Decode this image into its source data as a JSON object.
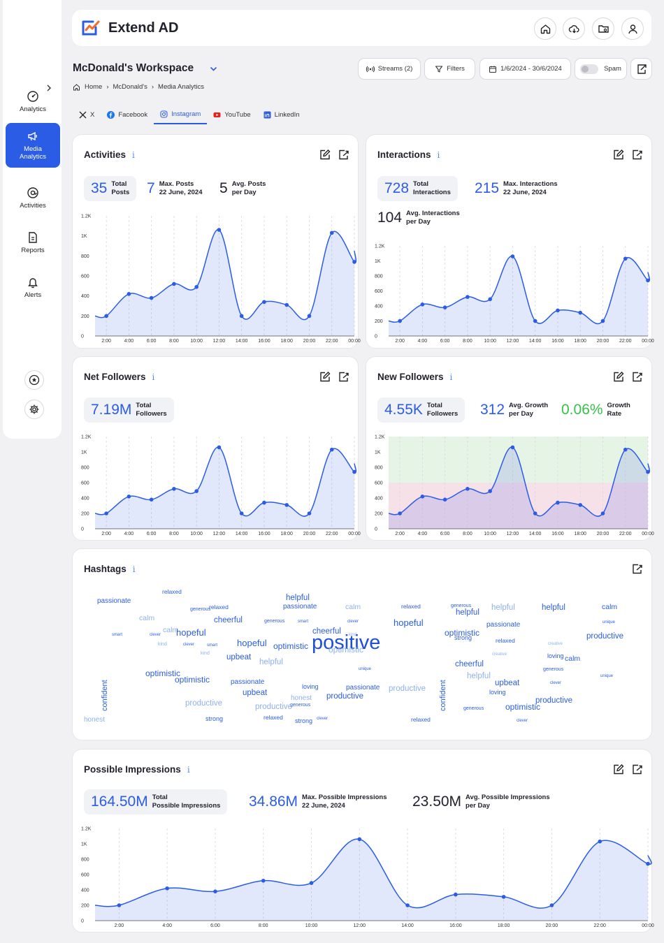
{
  "app": {
    "name": "Extend AD"
  },
  "sidebar": {
    "items": [
      {
        "label": "Analytics",
        "icon": "gauge-icon"
      },
      {
        "label": "Media Analytics",
        "icon": "megaphone-icon"
      },
      {
        "label": "Activities",
        "icon": "at-sign-icon"
      },
      {
        "label": "Reports",
        "icon": "document-icon"
      },
      {
        "label": "Alerts",
        "icon": "bell-icon"
      }
    ]
  },
  "workspace": {
    "title": "McDonald's Workspace"
  },
  "toolbar": {
    "streams": "Streams (2)",
    "filters": "Filters",
    "date_range": "1/6/2024 - 30/6/2024",
    "spam": "Spam"
  },
  "breadcrumb": [
    "Home",
    "McDonald's",
    "Media Analytics"
  ],
  "tabs": [
    {
      "label": "X"
    },
    {
      "label": "Facebook"
    },
    {
      "label": "Instagram",
      "active": true
    },
    {
      "label": "YouTube"
    },
    {
      "label": "LinkedIn"
    }
  ],
  "info_glyph": "i",
  "cards": {
    "activities": {
      "title": "Activities",
      "stats": [
        {
          "value": "35",
          "label1": "Total",
          "label2": "Posts"
        },
        {
          "value": "7",
          "label1": "Max. Posts",
          "label2": "22 June, 2024"
        },
        {
          "value": "5",
          "label1": "Avg. Posts",
          "label2": "per Day"
        }
      ]
    },
    "interactions": {
      "title": "Interactions",
      "stats": [
        {
          "value": "728",
          "label1": "Total",
          "label2": "Interactions"
        },
        {
          "value": "215",
          "label1": "Max. Interactions",
          "label2": "22 June, 2024"
        },
        {
          "value": "104",
          "label1": "Avg. Interactions",
          "label2": "per Day"
        }
      ]
    },
    "net_followers": {
      "title": "Net Followers",
      "stats": [
        {
          "value": "7.19M",
          "label1": "Total",
          "label2": "Followers"
        }
      ]
    },
    "new_followers": {
      "title": "New Followers",
      "stats": [
        {
          "value": "4.55K",
          "label1": "Total",
          "label2": "Followers"
        },
        {
          "value": "312",
          "label1": "Avg. Growth",
          "label2": "per Day"
        },
        {
          "value": "0.06%",
          "label1": "Growth",
          "label2": "Rate"
        }
      ]
    },
    "hashtags": {
      "title": "Hashtags"
    },
    "impressions": {
      "title": "Possible Impressions",
      "stats": [
        {
          "value": "164.50M",
          "label1": "Total",
          "label2": "Possible Impressions"
        },
        {
          "value": "34.86M",
          "label1": "Max. Possible Impressions",
          "label2": "22 June, 2024"
        },
        {
          "value": "23.50M",
          "label1": "Avg. Possible Impressions",
          "label2": "per Day"
        }
      ]
    }
  },
  "chart_data": [
    {
      "id": "activities",
      "type": "area",
      "x": [
        "2:00",
        "4:00",
        "6:00",
        "8:00",
        "10:00",
        "12:00",
        "14:00",
        "16:00",
        "18:00",
        "20:00",
        "22:00",
        "00:00"
      ],
      "values": [
        200,
        420,
        380,
        520,
        490,
        1060,
        200,
        340,
        310,
        200,
        1030,
        740
      ],
      "ylim": [
        0,
        1200
      ],
      "yticks": [
        "0",
        "200",
        "400",
        "600",
        "800",
        "1K",
        "1.2K"
      ]
    },
    {
      "id": "interactions",
      "type": "area",
      "x": [
        "2:00",
        "4:00",
        "6:00",
        "8:00",
        "10:00",
        "12:00",
        "14:00",
        "16:00",
        "18:00",
        "20:00",
        "22:00",
        "00:00"
      ],
      "values": [
        200,
        420,
        380,
        520,
        490,
        1060,
        200,
        340,
        310,
        200,
        1030,
        740
      ],
      "ylim": [
        0,
        1200
      ],
      "yticks": [
        "0",
        "200",
        "400",
        "600",
        "800",
        "1K",
        "1.2K"
      ]
    },
    {
      "id": "net_followers",
      "type": "area",
      "x": [
        "2:00",
        "4:00",
        "6:00",
        "8:00",
        "10:00",
        "12:00",
        "14:00",
        "16:00",
        "18:00",
        "20:00",
        "22:00",
        "00:00"
      ],
      "values": [
        200,
        420,
        380,
        520,
        490,
        1060,
        200,
        340,
        310,
        200,
        1030,
        740
      ],
      "ylim": [
        0,
        1200
      ],
      "yticks": [
        "0",
        "200",
        "400",
        "600",
        "800",
        "1K",
        "1.2K"
      ]
    },
    {
      "id": "new_followers",
      "type": "area",
      "x": [
        "2:00",
        "4:00",
        "6:00",
        "8:00",
        "10:00",
        "12:00",
        "14:00",
        "16:00",
        "18:00",
        "20:00",
        "22:00",
        "00:00"
      ],
      "values": [
        200,
        420,
        380,
        520,
        490,
        1060,
        200,
        340,
        310,
        200,
        1030,
        740
      ],
      "ylim": [
        0,
        1200
      ],
      "yticks": [
        "0",
        "200",
        "400",
        "600",
        "800",
        "1K",
        "1.2K"
      ],
      "bands": [
        {
          "from": 600,
          "to": 1200,
          "color": "#e6f4e6"
        },
        {
          "from": 0,
          "to": 600,
          "color": "#f7e1e8"
        }
      ]
    },
    {
      "id": "impressions",
      "type": "area",
      "x": [
        "2:00",
        "4:00",
        "6:00",
        "8:00",
        "10:00",
        "12:00",
        "14:00",
        "16:00",
        "18:00",
        "20:00",
        "22:00",
        "00:00"
      ],
      "values": [
        200,
        420,
        380,
        520,
        490,
        1060,
        200,
        340,
        310,
        200,
        1030,
        740
      ],
      "ylim": [
        0,
        1200
      ],
      "yticks": [
        "0",
        "200",
        "400",
        "600",
        "800",
        "1K",
        "1.2K"
      ]
    }
  ],
  "hashtags": [
    {
      "t": "passionate",
      "x": 139,
      "y": 856,
      "s": 10,
      "c": "#2b5ce6"
    },
    {
      "t": "relaxed",
      "x": 232,
      "y": 843,
      "s": 8.5,
      "c": "#2b5ce6"
    },
    {
      "t": "generous",
      "x": 272,
      "y": 869,
      "s": 7,
      "c": "#2b5ce6"
    },
    {
      "t": "relaxed",
      "x": 299,
      "y": 865,
      "s": 8.5,
      "c": "#2b5ce6"
    },
    {
      "t": "helpful",
      "x": 409,
      "y": 851,
      "s": 11.5,
      "c": "#2b5ce6"
    },
    {
      "t": "passionate",
      "x": 405,
      "y": 864,
      "s": 10,
      "c": "#2b5ce6"
    },
    {
      "t": "calm",
      "x": 494,
      "y": 864,
      "s": 10.5,
      "c": "#8fb0f3"
    },
    {
      "t": "relaxed",
      "x": 574,
      "y": 864,
      "s": 8.5,
      "c": "#2b5ce6"
    },
    {
      "t": "generous",
      "x": 645,
      "y": 864,
      "s": 7,
      "c": "#2b5ce6"
    },
    {
      "t": "helpful",
      "x": 652,
      "y": 872,
      "s": 11.5,
      "c": "#2b5ce6"
    },
    {
      "t": "helpful",
      "x": 703,
      "y": 865,
      "s": 11.5,
      "c": "#8fb0f3"
    },
    {
      "t": "helpful",
      "x": 775,
      "y": 865,
      "s": 11.5,
      "c": "#2b5ce6"
    },
    {
      "t": "calm",
      "x": 861,
      "y": 864,
      "s": 10.5,
      "c": "#2b5ce6"
    },
    {
      "t": "calm",
      "x": 199,
      "y": 880,
      "s": 10.5,
      "c": "#8fb0f3"
    },
    {
      "t": "cheerful",
      "x": 306,
      "y": 883,
      "s": 11.5,
      "c": "#2b5ce6"
    },
    {
      "t": "generous",
      "x": 378,
      "y": 886,
      "s": 7,
      "c": "#2b5ce6"
    },
    {
      "t": "smart",
      "x": 426,
      "y": 887,
      "s": 6,
      "c": "#2b5ce6"
    },
    {
      "t": "clever",
      "x": 497,
      "y": 887,
      "s": 6,
      "c": "#2b5ce6"
    },
    {
      "t": "hopeful",
      "x": 563,
      "y": 885,
      "s": 13,
      "c": "#2b5ce6"
    },
    {
      "t": "passionate",
      "x": 696,
      "y": 890,
      "s": 10,
      "c": "#2b5ce6"
    },
    {
      "t": "unique",
      "x": 862,
      "y": 888,
      "s": 6,
      "c": "#2b5ce6"
    },
    {
      "t": "smart",
      "x": 160,
      "y": 906,
      "s": 6,
      "c": "#2b5ce6"
    },
    {
      "t": "clever",
      "x": 214,
      "y": 906,
      "s": 6,
      "c": "#2b5ce6"
    },
    {
      "t": "calm",
      "x": 233,
      "y": 897,
      "s": 10.5,
      "c": "#8fb0f3"
    },
    {
      "t": "hopeful",
      "x": 252,
      "y": 899,
      "s": 13,
      "c": "#2b5ce6"
    },
    {
      "t": "cheerful",
      "x": 447,
      "y": 899,
      "s": 11.5,
      "c": "#2b5ce6"
    },
    {
      "t": "kind",
      "x": 499,
      "y": 906,
      "s": 6,
      "c": "#8fb0f3"
    },
    {
      "t": "optimistic",
      "x": 636,
      "y": 900,
      "s": 12,
      "c": "#2b5ce6"
    },
    {
      "t": "strong",
      "x": 650,
      "y": 909,
      "s": 9,
      "c": "#2b5ce6"
    },
    {
      "t": "relaxed",
      "x": 709,
      "y": 913,
      "s": 8.5,
      "c": "#2b5ce6"
    },
    {
      "t": "productive",
      "x": 839,
      "y": 906,
      "s": 11.5,
      "c": "#2b5ce6"
    },
    {
      "t": "kind",
      "x": 226,
      "y": 919,
      "s": 7,
      "c": "#8fb0f3"
    },
    {
      "t": "clever",
      "x": 262,
      "y": 920,
      "s": 6,
      "c": "#2b5ce6"
    },
    {
      "t": "smart",
      "x": 296,
      "y": 921,
      "s": 6,
      "c": "#2b5ce6"
    },
    {
      "t": "hopeful",
      "x": 339,
      "y": 914,
      "s": 13,
      "c": "#2b5ce6"
    },
    {
      "t": "optimistic",
      "x": 391,
      "y": 919,
      "s": 12,
      "c": "#2b5ce6"
    },
    {
      "t": "positive",
      "x": 446,
      "y": 906,
      "s": 29,
      "c": "#1e4fd8"
    },
    {
      "t": "optimistic",
      "x": 470,
      "y": 924,
      "s": 12,
      "c": "#8fb0f3"
    },
    {
      "t": "creative",
      "x": 784,
      "y": 919,
      "s": 6,
      "c": "#8fb0f3"
    },
    {
      "t": "kind",
      "x": 287,
      "y": 932,
      "s": 7,
      "c": "#8fb0f3"
    },
    {
      "t": "upbeat",
      "x": 324,
      "y": 936,
      "s": 11.5,
      "c": "#2b5ce6"
    },
    {
      "t": "creative",
      "x": 704,
      "y": 934,
      "s": 6,
      "c": "#8fb0f3"
    },
    {
      "t": "loving",
      "x": 783,
      "y": 935,
      "s": 9,
      "c": "#2b5ce6"
    },
    {
      "t": "calm",
      "x": 808,
      "y": 938,
      "s": 10.5,
      "c": "#2b5ce6"
    },
    {
      "t": "helpful",
      "x": 371,
      "y": 943,
      "s": 11.5,
      "c": "#8fb0f3"
    },
    {
      "t": "cheerful",
      "x": 651,
      "y": 946,
      "s": 11.5,
      "c": "#2b5ce6"
    },
    {
      "t": "unique",
      "x": 513,
      "y": 955,
      "s": 6,
      "c": "#2b5ce6"
    },
    {
      "t": "generous",
      "x": 777,
      "y": 955,
      "s": 7,
      "c": "#2b5ce6"
    },
    {
      "t": "optimistic",
      "x": 208,
      "y": 958,
      "s": 12,
      "c": "#2b5ce6"
    },
    {
      "t": "optimistic",
      "x": 250,
      "y": 967,
      "s": 12,
      "c": "#2b5ce6"
    },
    {
      "t": "helpful",
      "x": 668,
      "y": 963,
      "s": 11.5,
      "c": "#8fb0f3"
    },
    {
      "t": "unique",
      "x": 859,
      "y": 965,
      "s": 6,
      "c": "#2b5ce6"
    },
    {
      "t": "passionate",
      "x": 330,
      "y": 972,
      "s": 10,
      "c": "#2b5ce6"
    },
    {
      "t": "upbeat",
      "x": 708,
      "y": 973,
      "s": 11.5,
      "c": "#2b5ce6"
    },
    {
      "t": "clever",
      "x": 787,
      "y": 975,
      "s": 6,
      "c": "#2b5ce6"
    },
    {
      "t": "loving",
      "x": 432,
      "y": 979,
      "s": 9,
      "c": "#2b5ce6"
    },
    {
      "t": "passionate",
      "x": 495,
      "y": 980,
      "s": 10,
      "c": "#2b5ce6"
    },
    {
      "t": "productive",
      "x": 556,
      "y": 981,
      "s": 11.5,
      "c": "#8fb0f3"
    },
    {
      "t": "upbeat",
      "x": 347,
      "y": 987,
      "s": 11.5,
      "c": "#2b5ce6"
    },
    {
      "t": "loving",
      "x": 700,
      "y": 987,
      "s": 9,
      "c": "#2b5ce6"
    },
    {
      "t": "honest",
      "x": 416,
      "y": 995,
      "s": 10,
      "c": "#8fb0f3"
    },
    {
      "t": "productive",
      "x": 467,
      "y": 992,
      "s": 11.5,
      "c": "#2b5ce6"
    },
    {
      "t": "generous",
      "x": 415,
      "y": 1006,
      "s": 7,
      "c": "#2b5ce6"
    },
    {
      "t": "productive",
      "x": 766,
      "y": 998,
      "s": 11.5,
      "c": "#2b5ce6"
    },
    {
      "t": "productive",
      "x": 265,
      "y": 1002,
      "s": 11.5,
      "c": "#8fb0f3"
    },
    {
      "t": "productive",
      "x": 365,
      "y": 1007,
      "s": 11.5,
      "c": "#8fb0f3"
    },
    {
      "t": "optimistic",
      "x": 723,
      "y": 1006,
      "s": 12,
      "c": "#2b5ce6"
    },
    {
      "t": "generous",
      "x": 663,
      "y": 1011,
      "s": 7,
      "c": "#2b5ce6"
    },
    {
      "t": "honest",
      "x": 120,
      "y": 1026,
      "s": 10,
      "c": "#8fb0f3"
    },
    {
      "t": "strong",
      "x": 294,
      "y": 1025,
      "s": 9,
      "c": "#2b5ce6"
    },
    {
      "t": "relaxed",
      "x": 377,
      "y": 1023,
      "s": 8.5,
      "c": "#2b5ce6"
    },
    {
      "t": "strong",
      "x": 422,
      "y": 1028,
      "s": 9,
      "c": "#2b5ce6"
    },
    {
      "t": "clever",
      "x": 453,
      "y": 1026,
      "s": 6,
      "c": "#2b5ce6"
    },
    {
      "t": "relaxed",
      "x": 588,
      "y": 1026,
      "s": 8.5,
      "c": "#2b5ce6"
    },
    {
      "t": "clever",
      "x": 739,
      "y": 1029,
      "s": 6,
      "c": "#2b5ce6"
    }
  ],
  "hashtags_vertical": [
    {
      "t": "confident",
      "x": 145,
      "y": 1018,
      "s": 11,
      "c": "#2b5ce6"
    },
    {
      "t": "confident",
      "x": 629,
      "y": 1018,
      "s": 11,
      "c": "#2b5ce6"
    }
  ]
}
